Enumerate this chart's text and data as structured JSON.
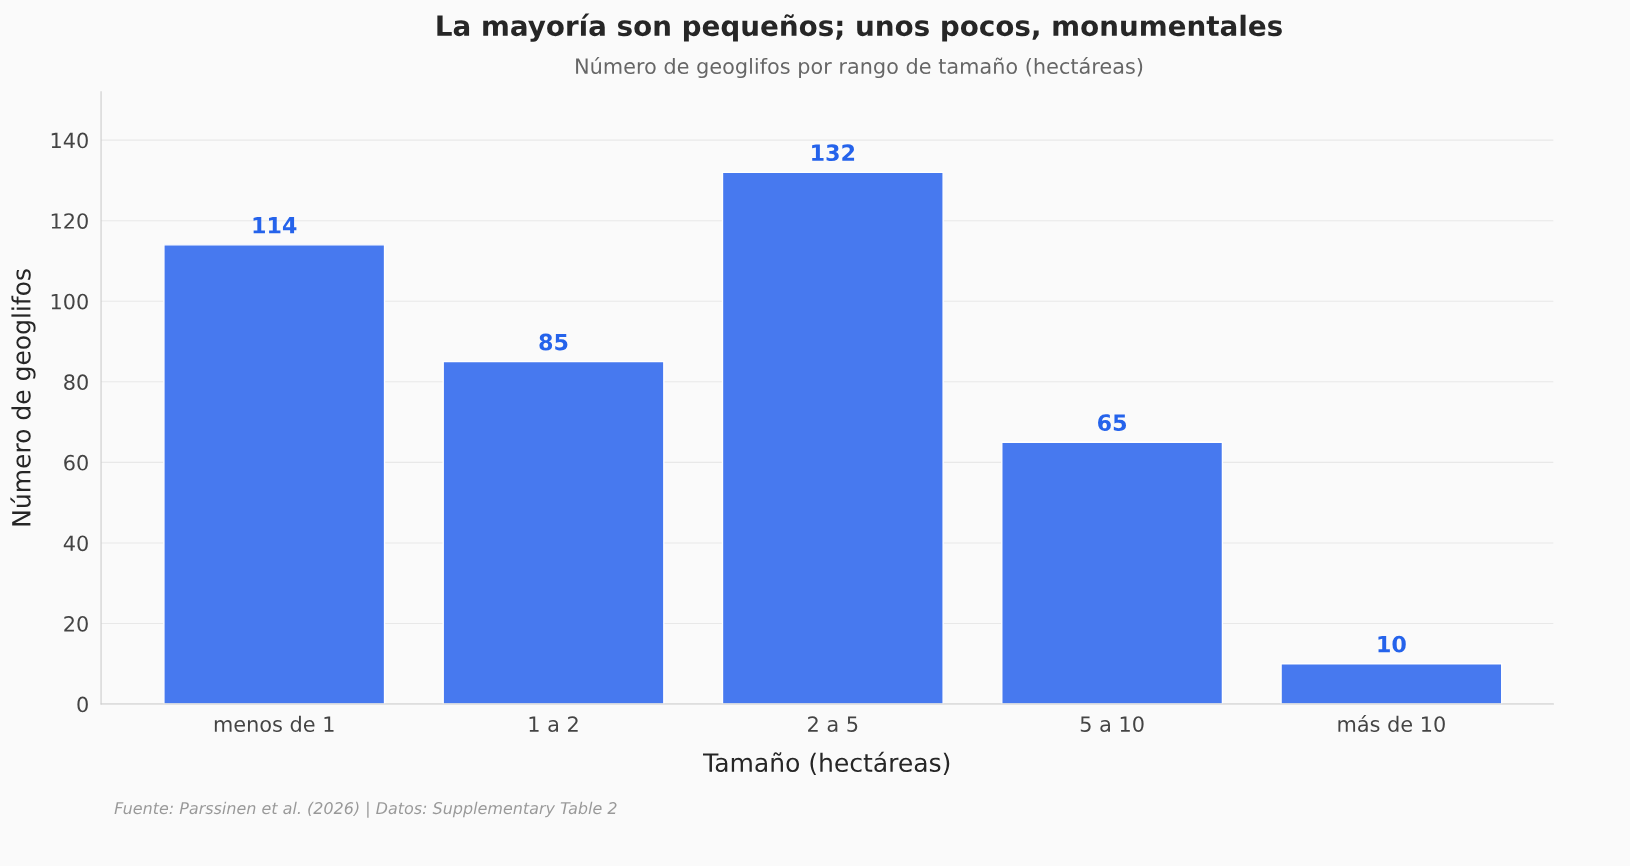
{
  "chart_data": {
    "type": "bar",
    "title": "La mayoría son pequeños; unos pocos, monumentales",
    "subtitle": "Número de geoglifos por rango de tamaño (hectáreas)",
    "xlabel": "Tamaño (hectáreas)",
    "ylabel": "Número de geoglifos",
    "categories": [
      "menos de 1",
      "1 a 2",
      "2 a 5",
      "5 a 10",
      "más de 10"
    ],
    "values": [
      114,
      85,
      132,
      65,
      10
    ],
    "color": "#4779ef",
    "ylim": [
      0,
      152
    ],
    "yticks": [
      0,
      20,
      40,
      60,
      80,
      100,
      120,
      140
    ],
    "grid": "y",
    "data_labels": true,
    "annotations": [
      "Fuente: Parssinen et al. (2026) | Datos: Supplementary Table 2"
    ]
  }
}
